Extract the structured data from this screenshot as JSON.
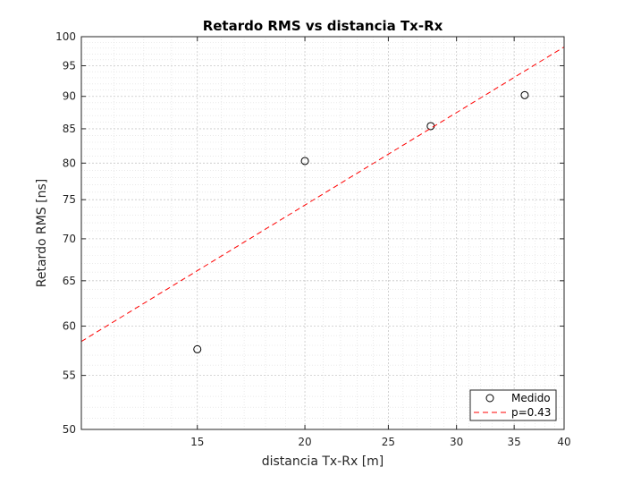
{
  "chart_data": {
    "type": "scatter",
    "title": "Retardo RMS vs distancia Tx-Rx",
    "xlabel": "distancia Tx-Rx [m]",
    "ylabel": "Retardo RMS [ns]",
    "xscale": "log",
    "yscale": "log",
    "xlim": [
      11,
      40
    ],
    "ylim": [
      50,
      100
    ],
    "xticks": [
      15,
      20,
      25,
      30,
      35,
      40
    ],
    "yticks": [
      50,
      55,
      60,
      65,
      70,
      75,
      80,
      85,
      90,
      95,
      100
    ],
    "grid": true,
    "minor_grid": true,
    "legend_position": "bottom-right",
    "series": [
      {
        "name": "Medido",
        "kind": "markers",
        "marker": "circle",
        "color": "#000000",
        "points": [
          {
            "x": 15,
            "y": 57.6
          },
          {
            "x": 20,
            "y": 80.3
          },
          {
            "x": 28,
            "y": 85.4
          },
          {
            "x": 36,
            "y": 90.2
          }
        ]
      },
      {
        "name": "p=0.43",
        "kind": "line",
        "style": "dashed",
        "color": "#ff0000",
        "points": [
          {
            "x": 11,
            "y": 58.4
          },
          {
            "x": 40,
            "y": 98.2
          }
        ]
      }
    ]
  }
}
